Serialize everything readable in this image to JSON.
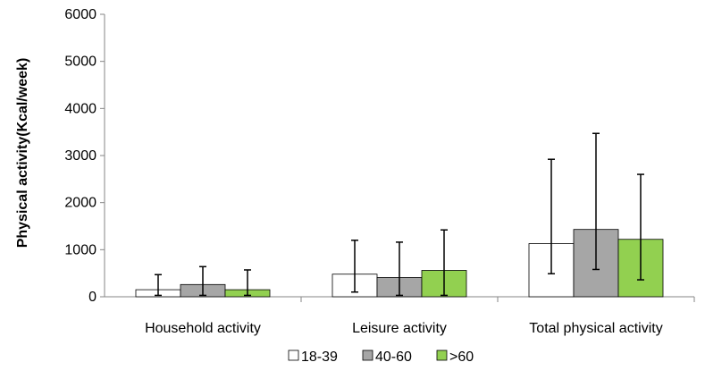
{
  "chart_data": {
    "type": "bar",
    "title": "",
    "xlabel": "",
    "ylabel": "Physical activity(Kcal/week)",
    "ylim": [
      0,
      6000
    ],
    "yticks": [
      "0",
      "1000",
      "2000",
      "3000",
      "4000",
      "5000",
      "6000"
    ],
    "categories": [
      "Household activity",
      "Leisure activity",
      "Total physical activity"
    ],
    "series": [
      {
        "name": "18-39",
        "color": "#ffffff",
        "values": [
          150,
          480,
          1130
        ],
        "err_low": [
          30,
          100,
          490
        ],
        "err_high": [
          470,
          1200,
          2920
        ]
      },
      {
        "name": "40-60",
        "color": "#a6a6a6",
        "values": [
          260,
          410,
          1430
        ],
        "err_low": [
          30,
          30,
          580
        ],
        "err_high": [
          640,
          1160,
          3470
        ]
      },
      {
        "name": ">60",
        "color": "#92d050",
        "values": [
          150,
          560,
          1220
        ],
        "err_low": [
          30,
          30,
          360
        ],
        "err_high": [
          570,
          1420,
          2600
        ]
      }
    ],
    "legend_position": "bottom",
    "grid": false
  }
}
